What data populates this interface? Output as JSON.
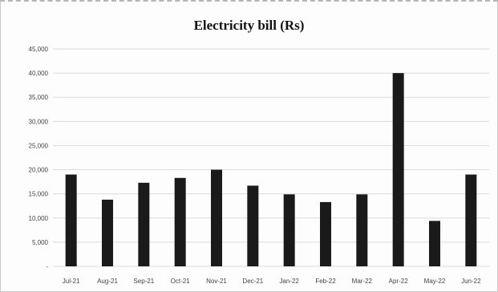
{
  "chart_data": {
    "type": "bar",
    "title": "Electricity bill (Rs)",
    "xlabel": "",
    "ylabel": "",
    "categories": [
      "Jul-21",
      "Aug-21",
      "Sep-21",
      "Oct-21",
      "Nov-21",
      "Dec-21",
      "Jan-22",
      "Feb-22",
      "Mar-22",
      "Apr-22",
      "May-22",
      "Jun-22"
    ],
    "values": [
      19000,
      13800,
      17300,
      18300,
      20000,
      16700,
      14900,
      13300,
      14900,
      40000,
      9400,
      19000
    ],
    "y_ticks": [
      "-",
      "5,000",
      "10,000",
      "15,000",
      "20,000",
      "25,000",
      "30,000",
      "35,000",
      "40,000",
      "45,000"
    ],
    "ylim": [
      0,
      45000
    ],
    "grid": true,
    "bar_color": "#1a1a1a",
    "grid_color": "#dcdcdc"
  }
}
